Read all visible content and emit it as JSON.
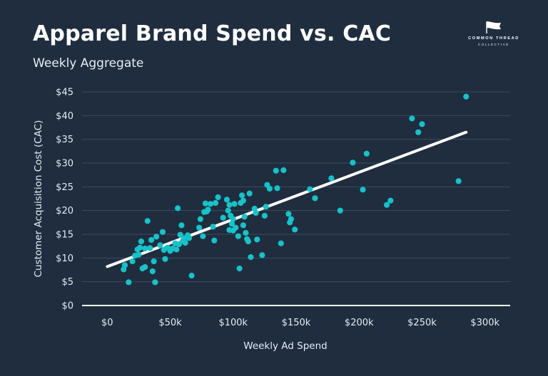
{
  "header": {
    "title": "Apparel Brand Spend vs. CAC",
    "subtitle": "Weekly Aggregate"
  },
  "logo": {
    "line1": "COMMON THREAD",
    "line2": "COLLECTIVE"
  },
  "colors": {
    "background": "#1f2d3f",
    "point": "#17c2c8",
    "trendline": "#ffffff",
    "grid": "#3c4c5f"
  },
  "chart_data": {
    "type": "scatter",
    "title": "Apparel Brand Spend vs. CAC",
    "subtitle": "Weekly Aggregate",
    "xlabel": "Weekly Ad Spend",
    "ylabel": "Customer Acquisition Cost (CAC)",
    "xlim": [
      -20000,
      320000
    ],
    "ylim": [
      0,
      45
    ],
    "x_ticks": [
      0,
      50000,
      100000,
      150000,
      200000,
      250000,
      300000
    ],
    "x_tick_labels": [
      "$0",
      "$50k",
      "$100k",
      "$150k",
      "$200k",
      "$250k",
      "$300k"
    ],
    "y_ticks": [
      0,
      5,
      10,
      15,
      20,
      25,
      30,
      35,
      40,
      45
    ],
    "y_tick_labels": [
      "$0",
      "$5",
      "$10",
      "$15",
      "$20",
      "$25",
      "$30",
      "$35",
      "$40",
      "$45"
    ],
    "grid": "horizontal",
    "legend": "none",
    "trendline": {
      "x": [
        0,
        285000
      ],
      "y": [
        8.2,
        36.5
      ]
    },
    "points": [
      [
        13000,
        7.6
      ],
      [
        14000,
        8.5
      ],
      [
        17000,
        4.9
      ],
      [
        20000,
        9.3
      ],
      [
        22000,
        10.5
      ],
      [
        24000,
        11.8
      ],
      [
        25000,
        10.7
      ],
      [
        26000,
        12.2
      ],
      [
        27000,
        13.5
      ],
      [
        28000,
        7.8
      ],
      [
        30000,
        8.1
      ],
      [
        30000,
        12.0
      ],
      [
        32000,
        17.8
      ],
      [
        34000,
        12.1
      ],
      [
        35000,
        13.8
      ],
      [
        36000,
        7.2
      ],
      [
        37000,
        9.3
      ],
      [
        38000,
        4.9
      ],
      [
        39000,
        14.5
      ],
      [
        42000,
        12.7
      ],
      [
        44000,
        15.5
      ],
      [
        45000,
        11.7
      ],
      [
        46000,
        9.8
      ],
      [
        48000,
        12.2
      ],
      [
        50000,
        11.5
      ],
      [
        52000,
        12.0
      ],
      [
        54000,
        13.1
      ],
      [
        55000,
        11.8
      ],
      [
        56000,
        20.5
      ],
      [
        57000,
        12.9
      ],
      [
        58000,
        14.9
      ],
      [
        59000,
        16.9
      ],
      [
        60000,
        13.6
      ],
      [
        61000,
        14.2
      ],
      [
        62000,
        13.2
      ],
      [
        64000,
        14.8
      ],
      [
        65000,
        14.2
      ],
      [
        67000,
        6.3
      ],
      [
        73000,
        16.4
      ],
      [
        74000,
        18.2
      ],
      [
        76000,
        14.6
      ],
      [
        77000,
        19.7
      ],
      [
        78000,
        21.5
      ],
      [
        79000,
        19.8
      ],
      [
        80000,
        20.2
      ],
      [
        82000,
        21.4
      ],
      [
        84000,
        16.6
      ],
      [
        85000,
        13.7
      ],
      [
        86000,
        21.6
      ],
      [
        88000,
        22.8
      ],
      [
        92000,
        18.5
      ],
      [
        95000,
        22.3
      ],
      [
        96000,
        20.0
      ],
      [
        97000,
        15.9
      ],
      [
        97000,
        21.2
      ],
      [
        98000,
        18.9
      ],
      [
        99000,
        17.2
      ],
      [
        100000,
        15.8
      ],
      [
        100000,
        18.2
      ],
      [
        101000,
        21.4
      ],
      [
        102000,
        16.4
      ],
      [
        104000,
        14.6
      ],
      [
        105000,
        7.8
      ],
      [
        106000,
        21.6
      ],
      [
        107000,
        23.2
      ],
      [
        108000,
        16.9
      ],
      [
        108000,
        22.1
      ],
      [
        109000,
        18.7
      ],
      [
        110000,
        15.3
      ],
      [
        111000,
        14.0
      ],
      [
        112000,
        13.5
      ],
      [
        113000,
        23.6
      ],
      [
        114000,
        10.2
      ],
      [
        117000,
        20.4
      ],
      [
        118000,
        19.5
      ],
      [
        119000,
        13.9
      ],
      [
        123000,
        10.6
      ],
      [
        125000,
        18.9
      ],
      [
        126000,
        20.8
      ],
      [
        127000,
        25.4
      ],
      [
        129000,
        24.6
      ],
      [
        134000,
        28.4
      ],
      [
        135000,
        24.7
      ],
      [
        138000,
        13.1
      ],
      [
        140000,
        28.5
      ],
      [
        144000,
        19.3
      ],
      [
        145000,
        17.5
      ],
      [
        146000,
        18.2
      ],
      [
        149000,
        16.0
      ],
      [
        161000,
        24.5
      ],
      [
        165000,
        22.6
      ],
      [
        178000,
        26.8
      ],
      [
        185000,
        20.0
      ],
      [
        195000,
        30.1
      ],
      [
        203000,
        24.4
      ],
      [
        206000,
        32.0
      ],
      [
        222000,
        21.2
      ],
      [
        225000,
        22.1
      ],
      [
        242000,
        39.4
      ],
      [
        247000,
        36.5
      ],
      [
        250000,
        38.2
      ],
      [
        279000,
        26.2
      ],
      [
        285000,
        44.0
      ]
    ]
  }
}
